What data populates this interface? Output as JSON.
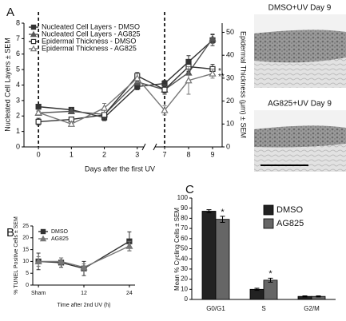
{
  "chart_data": [
    {
      "type": "line",
      "panel": "A",
      "x_label": "Days after the first UV",
      "y_label": "Nucleated Cell Layers ± SEM",
      "y2_label": "Epidermal Thickness (μm) ± SEM",
      "x": [
        0,
        1,
        2,
        3,
        7,
        8,
        9
      ],
      "xlim": [
        -0.44,
        9.4
      ],
      "x_break": [
        3.2,
        6.6
      ],
      "xticks": [
        0,
        1,
        2,
        3,
        7,
        8,
        9
      ],
      "ylim": [
        0,
        8
      ],
      "yticks": [
        0,
        1,
        2,
        3,
        4,
        5,
        6,
        7,
        8
      ],
      "y2lim": [
        0,
        54
      ],
      "y2ticks": [
        0,
        10,
        20,
        30,
        40,
        50
      ],
      "vlines": [
        0,
        7
      ],
      "legend": "upper left",
      "series": [
        {
          "name": "Nucleated Cell Layers - DMSO",
          "color": "#333333",
          "marker": "square",
          "filled": true,
          "values": [
            2.6,
            2.4,
            1.9,
            3.9,
            4.1,
            5.5,
            6.9
          ],
          "errors": [
            0.15,
            0.1,
            0.2,
            0.2,
            0.2,
            0.4,
            0.35
          ]
        },
        {
          "name": "Nucleated Cell Layers - AG825",
          "color": "#555555",
          "marker": "triangle",
          "filled": true,
          "values": [
            2.2,
            2.3,
            2.1,
            4.2,
            3.7,
            4.8,
            7.0
          ],
          "errors": [
            0.1,
            0.1,
            0.3,
            0.2,
            0.3,
            0.5,
            0.3
          ]
        },
        {
          "name": "Epidermal Thickness - DMSO",
          "color": "#333333",
          "marker": "square",
          "filled": false,
          "axis": "y2",
          "values": [
            11,
            12,
            14,
            31,
            25,
            35,
            34
          ],
          "errors": [
            1.5,
            1,
            2,
            1.5,
            1.5,
            2,
            2
          ]
        },
        {
          "name": "Epidermal Thickness - AG825",
          "color": "#777777",
          "marker": "triangle",
          "filled": false,
          "axis": "y2",
          "values": [
            15,
            10,
            17,
            30,
            16,
            29,
            32
          ],
          "errors": [
            1,
            1,
            2,
            2,
            2,
            6,
            2
          ]
        }
      ],
      "annotations": [
        "*",
        "**"
      ]
    },
    {
      "type": "line",
      "panel": "B",
      "x_label": "Time after 2nd UV (h)",
      "y_label": "% TUNEL Positive Cells ± SEM",
      "x": [
        0,
        6,
        12,
        24
      ],
      "xlim": [
        -1.5,
        25.5
      ],
      "xticks": [
        {
          "value": 0,
          "label": "Sham"
        },
        12,
        24
      ],
      "ylim": [
        0,
        25
      ],
      "yticks": [
        0,
        5,
        10,
        15,
        20,
        25
      ],
      "legend": "upper left",
      "series": [
        {
          "name": "DMSO",
          "color": "#333333",
          "marker": "square",
          "filled": true,
          "values": [
            10,
            9.5,
            7,
            18.5
          ],
          "errors": [
            3.5,
            2,
            3,
            4
          ]
        },
        {
          "name": "AG825",
          "color": "#777777",
          "marker": "triangle",
          "filled": true,
          "values": [
            10,
            10,
            7.5,
            16.5
          ],
          "errors": [
            2,
            1.5,
            1.5,
            2
          ]
        }
      ]
    },
    {
      "type": "bar",
      "panel": "C",
      "y_label": "Mean % Cycling Cells ± SEM",
      "categories": [
        "G0/G1",
        "S",
        "G2/M"
      ],
      "ylim": [
        0,
        100
      ],
      "yticks": [
        0,
        10,
        20,
        30,
        40,
        50,
        60,
        70,
        80,
        90,
        100
      ],
      "legend": "upper right",
      "series": [
        {
          "name": "DMSO",
          "color": "#222222",
          "values": [
            87,
            10,
            3
          ],
          "errors": [
            1.5,
            1,
            0.5
          ]
        },
        {
          "name": "AG825",
          "color": "#666666",
          "values": [
            79,
            19,
            3
          ],
          "errors": [
            3,
            2,
            0.5
          ]
        }
      ],
      "annotations": [
        "*",
        "*"
      ]
    }
  ],
  "micrographs": [
    {
      "label": "DMSO+UV Day 9"
    },
    {
      "label": "AG825+UV Day 9"
    }
  ]
}
